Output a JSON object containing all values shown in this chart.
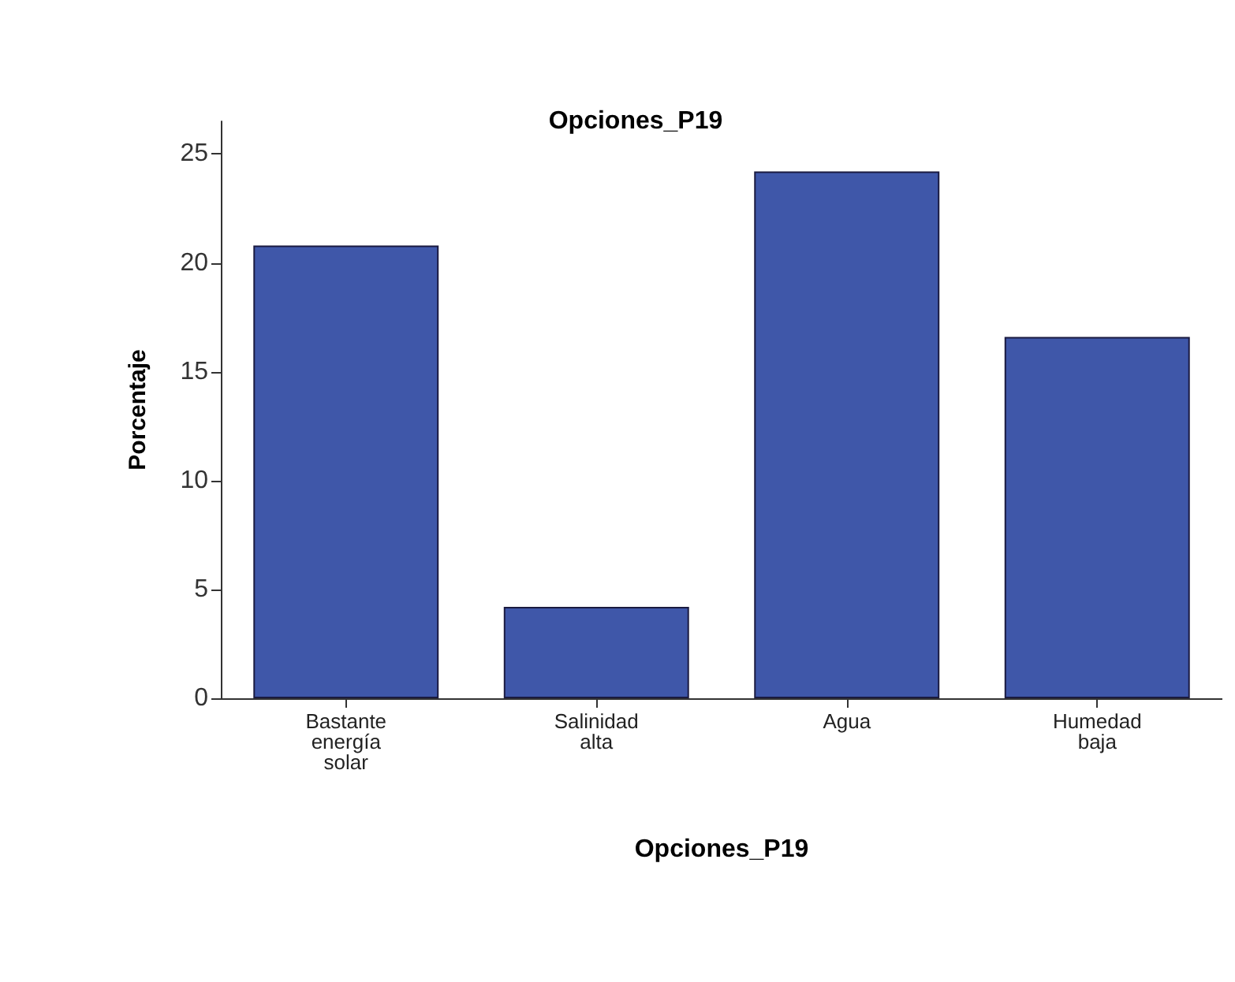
{
  "chart_data": {
    "type": "bar",
    "title": "Opciones_P19",
    "xlabel": "Opciones_P19",
    "ylabel": "Porcentaje",
    "categories": [
      "Bastante\nenergía\nsolar",
      "Salinidad\nalta",
      "Agua",
      "Humedad\nbaja"
    ],
    "values": [
      20.8,
      4.2,
      24.2,
      16.6
    ],
    "color": "#3f57a9",
    "ylim": [
      0,
      26.5
    ],
    "yticks": [
      0,
      5,
      10,
      15,
      20,
      25
    ],
    "grid": false
  }
}
